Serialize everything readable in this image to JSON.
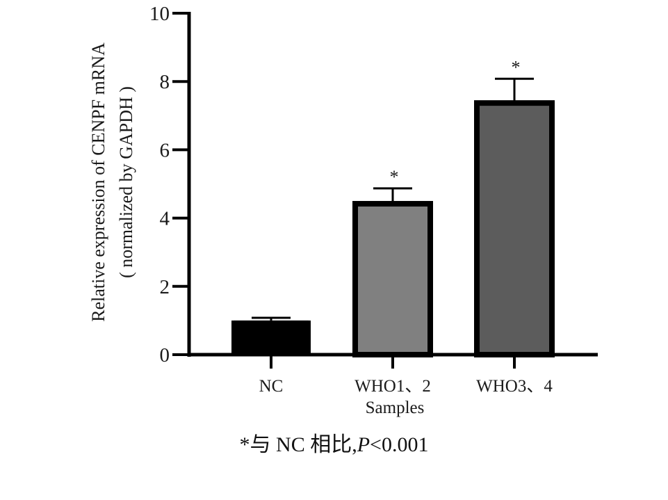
{
  "chart_data": {
    "type": "bar",
    "title": "",
    "categories": [
      "NC",
      "WHO1、2",
      "WHO3、4"
    ],
    "values": [
      1.0,
      4.42,
      7.37
    ],
    "error_upper": [
      1.08,
      4.87,
      8.08
    ],
    "significance": [
      "",
      "*",
      "*"
    ],
    "bar_colors": [
      "#000000",
      "#808080",
      "#5c5c5c"
    ],
    "xlabel": "Samples",
    "ylabel": [
      "Relative expression of CENPF mRNA",
      "( normalized by GAPDH )"
    ],
    "ylim": [
      0,
      10
    ],
    "yticks": [
      0,
      2,
      4,
      6,
      8,
      10
    ],
    "grid": false,
    "legend": "none"
  },
  "caption": {
    "prefix": "*与 NC 相比,",
    "p_label": "P",
    "p_value": "<0.001"
  }
}
